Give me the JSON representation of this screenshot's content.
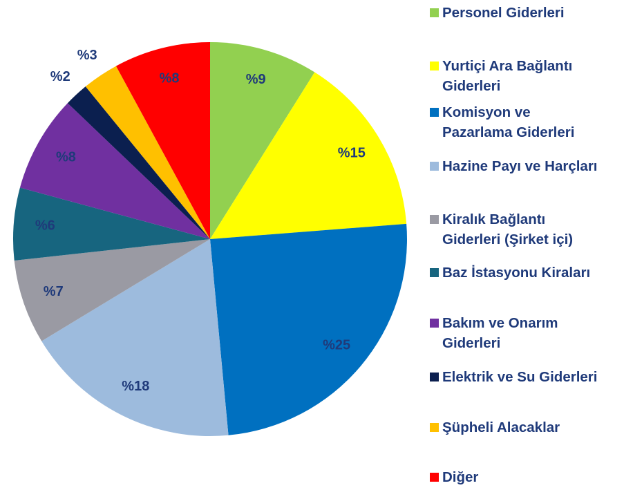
{
  "chart_data": {
    "type": "pie",
    "categories": [
      "Personel Giderleri",
      "Yurtiçi Ara Bağlantı Giderleri",
      "Komisyon ve Pazarlama Giderleri",
      "Hazine Payı ve Harçları",
      "Kiralık Bağlantı Giderleri (Şirket içi)",
      "Baz İstasyonu Kiraları",
      "Bakım ve Onarım Giderleri",
      "Elektrik ve Su Giderleri",
      "Şüpheli Alacaklar",
      "Diğer"
    ],
    "values": [
      9,
      15,
      25,
      18,
      7,
      6,
      8,
      2,
      3,
      8
    ],
    "value_labels": [
      "%9",
      "%15",
      "%25",
      "%18",
      "%7",
      "%6",
      "%8",
      "%2",
      "%3",
      "%8"
    ],
    "colors": [
      "#92d050",
      "#ffff00",
      "#0070c0",
      "#9dbbdd",
      "#9a9aa3",
      "#17657f",
      "#7030a0",
      "#0b1f4f",
      "#ffc000",
      "#ff0000"
    ],
    "legend": "right"
  }
}
